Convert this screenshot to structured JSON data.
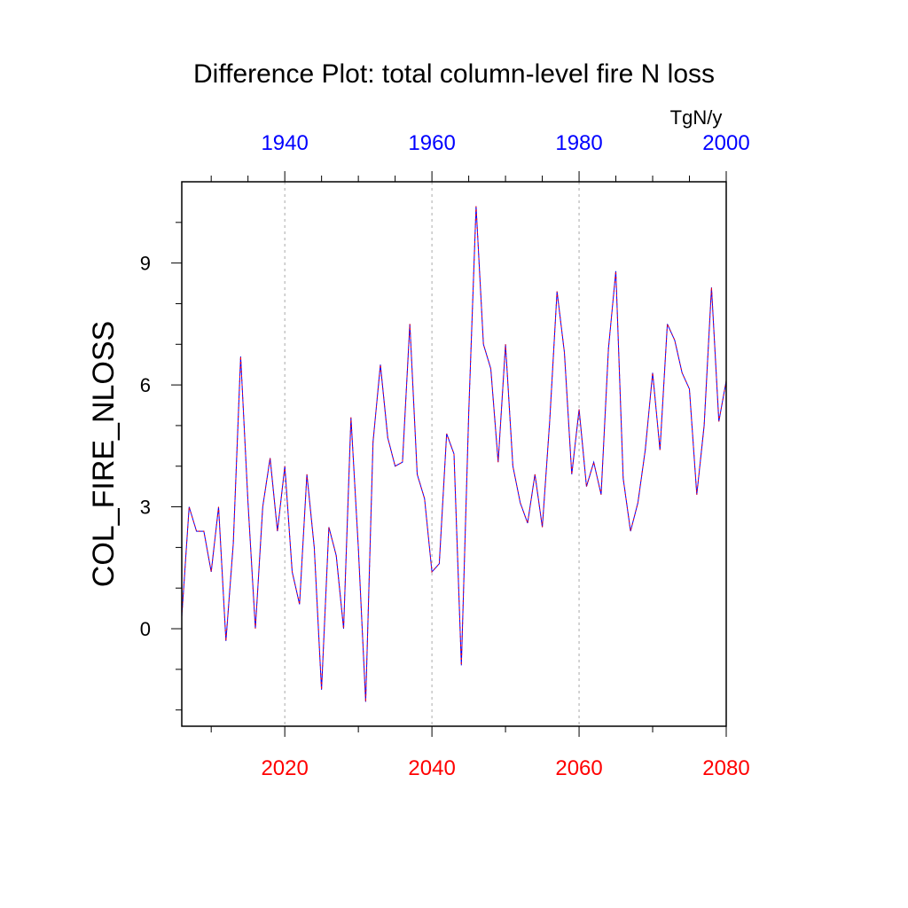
{
  "chart_data": {
    "type": "line",
    "title": "Difference Plot: total column-level fire N loss",
    "units": "TgN/y",
    "ylabel": "COL_FIRE_NLOSS",
    "xlabel": "",
    "xlim": [
      2006,
      2080
    ],
    "ylim": [
      -2.4,
      11.0
    ],
    "grid": "vertical dashed at 2020, 2040, 2060",
    "bottom_axis": {
      "color": "#ff0000",
      "ticks": [
        "2020",
        "2040",
        "2060",
        "2080"
      ],
      "tick_values": [
        2020,
        2040,
        2060,
        2080
      ]
    },
    "top_axis": {
      "color": "#0000ff",
      "ticks": [
        "1940",
        "1960",
        "1980",
        "2000"
      ],
      "tick_values": [
        1940,
        1960,
        1980,
        2000
      ],
      "offset_years": 80
    },
    "y_ticks": [
      "0",
      "3",
      "6",
      "9"
    ],
    "y_tick_values": [
      0,
      3,
      6,
      9
    ],
    "series": [
      {
        "color": "#0000ff",
        "style": "solid",
        "x": [
          2006,
          2007,
          2008,
          2009,
          2010,
          2011,
          2012,
          2013,
          2014,
          2015,
          2016,
          2017,
          2018,
          2019,
          2020,
          2021,
          2022,
          2023,
          2024,
          2025,
          2026,
          2027,
          2028,
          2029,
          2030,
          2031,
          2032,
          2033,
          2034,
          2035,
          2036,
          2037,
          2038,
          2039,
          2040,
          2041,
          2042,
          2043,
          2044,
          2045,
          2046,
          2047,
          2048,
          2049,
          2050,
          2051,
          2052,
          2053,
          2054,
          2055,
          2056,
          2057,
          2058,
          2059,
          2060,
          2061,
          2062,
          2063,
          2064,
          2065,
          2066,
          2067,
          2068,
          2069,
          2070,
          2071,
          2072,
          2073,
          2074,
          2075,
          2076,
          2077,
          2078,
          2079,
          2080
        ],
        "values": [
          0.3,
          3.0,
          2.4,
          2.4,
          1.4,
          3.0,
          -0.3,
          2.1,
          6.7,
          3.1,
          0.0,
          3.0,
          4.2,
          2.4,
          4.0,
          1.4,
          0.6,
          3.8,
          2.0,
          -1.5,
          2.5,
          1.8,
          0.0,
          5.2,
          2.0,
          -1.8,
          4.6,
          6.5,
          4.7,
          4.0,
          4.1,
          7.5,
          3.8,
          3.2,
          1.4,
          1.6,
          4.8,
          4.3,
          -0.9,
          5.3,
          10.4,
          7.0,
          6.4,
          4.1,
          7.0,
          4.0,
          3.1,
          2.6,
          3.8,
          2.5,
          5.1,
          8.3,
          6.8,
          3.8,
          5.4,
          3.5,
          4.1,
          3.3,
          6.9,
          8.8,
          3.7,
          2.4,
          3.1,
          4.4,
          6.3,
          4.4,
          7.5,
          7.1,
          6.3,
          5.9,
          3.3,
          5.0,
          8.4,
          5.1,
          6.1
        ]
      },
      {
        "color": "#ff0000",
        "style": "dashed",
        "x": [
          2006,
          2007,
          2008,
          2009,
          2010,
          2011,
          2012,
          2013,
          2014,
          2015,
          2016,
          2017,
          2018,
          2019,
          2020,
          2021,
          2022,
          2023,
          2024,
          2025,
          2026,
          2027,
          2028,
          2029,
          2030,
          2031,
          2032,
          2033,
          2034,
          2035,
          2036,
          2037,
          2038,
          2039,
          2040,
          2041,
          2042,
          2043,
          2044,
          2045,
          2046,
          2047,
          2048,
          2049,
          2050,
          2051,
          2052,
          2053,
          2054,
          2055,
          2056,
          2057,
          2058,
          2059,
          2060,
          2061,
          2062,
          2063,
          2064,
          2065,
          2066,
          2067,
          2068,
          2069,
          2070,
          2071,
          2072,
          2073,
          2074,
          2075,
          2076,
          2077,
          2078,
          2079,
          2080
        ],
        "values": [
          0.3,
          3.0,
          2.4,
          2.4,
          1.4,
          3.0,
          -0.3,
          2.1,
          6.7,
          3.1,
          0.0,
          3.0,
          4.2,
          2.4,
          4.0,
          1.4,
          0.6,
          3.8,
          2.0,
          -1.5,
          2.5,
          1.8,
          0.0,
          5.2,
          2.0,
          -1.8,
          4.6,
          6.5,
          4.7,
          4.0,
          4.1,
          7.5,
          3.8,
          3.2,
          1.4,
          1.6,
          4.8,
          4.3,
          -0.9,
          5.3,
          10.4,
          7.0,
          6.4,
          4.1,
          7.0,
          4.0,
          3.1,
          2.6,
          3.8,
          2.5,
          5.1,
          8.3,
          6.8,
          3.8,
          5.4,
          3.5,
          4.1,
          3.3,
          6.9,
          8.8,
          3.7,
          2.4,
          3.1,
          4.4,
          6.3,
          4.4,
          7.5,
          7.1,
          6.3,
          5.9,
          3.3,
          5.0,
          8.4,
          5.1,
          6.1
        ]
      }
    ]
  }
}
